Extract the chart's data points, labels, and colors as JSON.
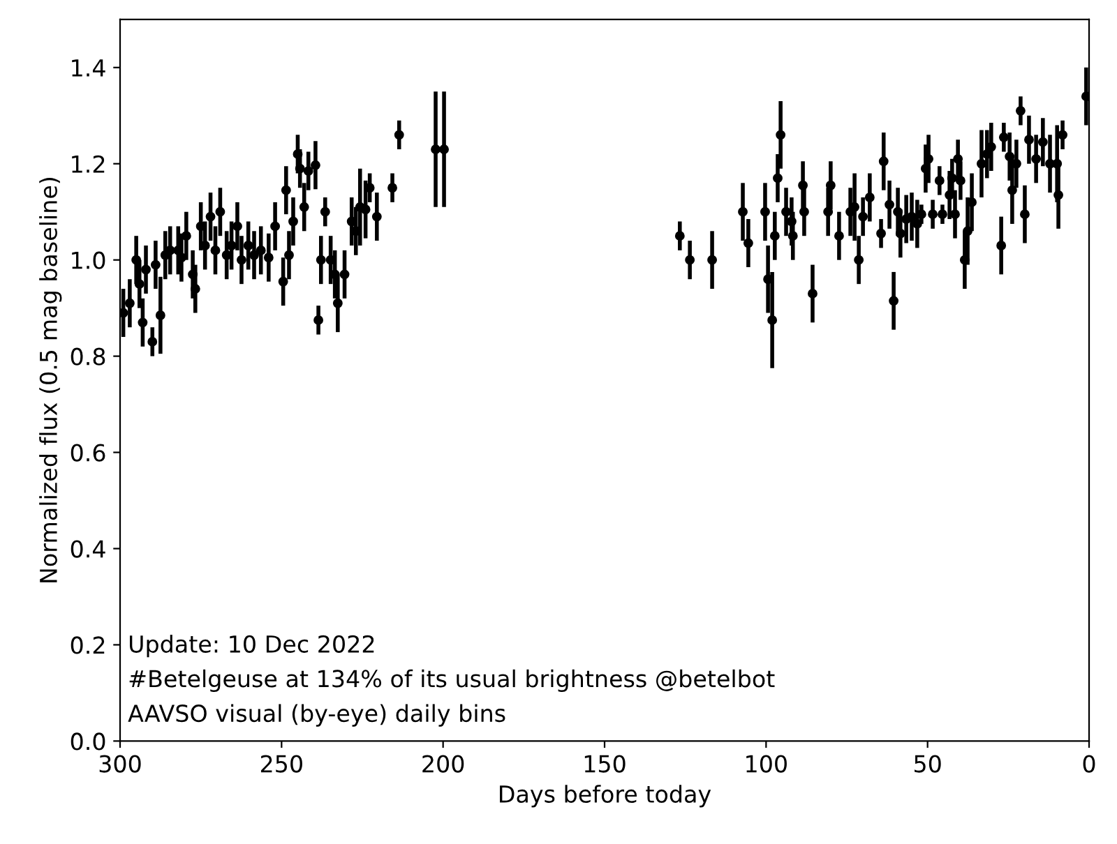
{
  "chart_data": {
    "type": "scatter",
    "xlabel": "Days before today",
    "ylabel": "Normalized flux (0.5 mag baseline)",
    "annotations": [
      "Update: 10 Dec 2022",
      "#Betelgeuse at 134% of its usual brightness @betelbot",
      "AAVSO visual (by-eye) daily bins"
    ],
    "xlim": [
      300,
      0
    ],
    "ylim": [
      0,
      1.5
    ],
    "xticks": [
      300,
      250,
      200,
      150,
      100,
      50,
      0
    ],
    "yticks": [
      {
        "value": 0,
        "label": "0.0"
      },
      {
        "value": 0.2,
        "label": "0.2"
      },
      {
        "value": 0.4,
        "label": "0.4"
      },
      {
        "value": 0.6,
        "label": "0.6"
      },
      {
        "value": 0.8,
        "label": "0.8"
      },
      {
        "value": 1.0,
        "label": "1.0"
      },
      {
        "value": 1.2,
        "label": "1.2"
      },
      {
        "value": 1.4,
        "label": "1.4"
      }
    ],
    "grid": false,
    "marker": "circle",
    "series": [
      {
        "color": "#000000",
        "x": [
          299,
          297,
          295,
          294,
          293,
          292,
          290,
          289,
          287.5,
          286,
          284.5,
          282,
          281,
          279.5,
          277.5,
          276.7,
          275,
          273.7,
          272,
          270.5,
          269,
          267,
          265.5,
          263.7,
          262.4,
          260.3,
          258.5,
          256.4,
          254,
          252,
          249.5,
          248.6,
          247.7,
          246.4,
          245,
          244.3,
          243,
          241.7,
          239.5,
          238.6,
          237.8,
          236.5,
          234.8,
          233.5,
          232.6,
          230.5,
          228.3,
          227,
          225.7,
          224,
          222.7,
          220.5,
          215.7,
          213.6,
          202.3,
          199.7,
          126.7,
          123.6,
          116.7,
          107.2,
          105.5,
          100.3,
          99.4,
          98.1,
          97.3,
          96.4,
          95.5,
          93.8,
          92.1,
          91.7,
          88.6,
          88.2,
          85.6,
          80.8,
          80,
          77.4,
          73.9,
          72.6,
          71.3,
          70,
          67.9,
          64.4,
          63.6,
          61.8,
          60.5,
          59.2,
          58.4,
          56.6,
          54.9,
          53.2,
          51.9,
          50.6,
          49.7,
          48.4,
          46.3,
          45.4,
          43.2,
          42.4,
          41.5,
          40.6,
          39.8,
          38.5,
          37.6,
          36.3,
          33.3,
          31.6,
          30.3,
          27.2,
          26.4,
          24.6,
          23.8,
          22.5,
          21.2,
          19.9,
          18.6,
          16.4,
          14.3,
          12.1,
          9.9,
          9.5,
          8.2,
          0.9
        ],
        "values": [
          0.89,
          0.91,
          1.0,
          0.95,
          0.87,
          0.98,
          0.83,
          0.99,
          0.885,
          1.01,
          1.02,
          1.02,
          1.005,
          1.05,
          0.97,
          0.94,
          1.07,
          1.03,
          1.09,
          1.02,
          1.1,
          1.01,
          1.03,
          1.07,
          1.0,
          1.03,
          1.01,
          1.02,
          1.005,
          1.07,
          0.955,
          1.145,
          1.01,
          1.08,
          1.22,
          1.19,
          1.11,
          1.185,
          1.197,
          0.875,
          1.0,
          1.1,
          1.0,
          0.97,
          0.91,
          0.97,
          1.08,
          1.06,
          1.11,
          1.105,
          1.15,
          1.09,
          1.15,
          1.26,
          1.23,
          1.23,
          1.05,
          1.0,
          1.0,
          1.1,
          1.035,
          1.1,
          0.96,
          0.875,
          1.05,
          1.17,
          1.26,
          1.1,
          1.08,
          1.05,
          1.155,
          1.1,
          0.93,
          1.1,
          1.155,
          1.05,
          1.1,
          1.11,
          1.0,
          1.09,
          1.13,
          1.055,
          1.205,
          1.115,
          0.915,
          1.1,
          1.055,
          1.085,
          1.09,
          1.075,
          1.095,
          1.19,
          1.21,
          1.095,
          1.165,
          1.095,
          1.135,
          1.17,
          1.095,
          1.21,
          1.165,
          1.0,
          1.06,
          1.12,
          1.2,
          1.22,
          1.235,
          1.03,
          1.255,
          1.215,
          1.145,
          1.2,
          1.31,
          1.095,
          1.25,
          1.21,
          1.245,
          1.2,
          1.2,
          1.135,
          1.26,
          1.34
        ],
        "errors": [
          0.05,
          0.05,
          0.05,
          0.05,
          0.05,
          0.05,
          0.03,
          0.05,
          0.08,
          0.05,
          0.05,
          0.05,
          0.05,
          0.05,
          0.05,
          0.05,
          0.05,
          0.05,
          0.05,
          0.05,
          0.05,
          0.05,
          0.05,
          0.05,
          0.05,
          0.05,
          0.05,
          0.05,
          0.05,
          0.05,
          0.05,
          0.05,
          0.05,
          0.05,
          0.04,
          0.04,
          0.05,
          0.04,
          0.05,
          0.03,
          0.05,
          0.03,
          0.05,
          0.05,
          0.06,
          0.05,
          0.05,
          0.05,
          0.08,
          0.06,
          0.03,
          0.05,
          0.03,
          0.03,
          0.12,
          0.12,
          0.03,
          0.04,
          0.06,
          0.06,
          0.05,
          0.06,
          0.07,
          0.1,
          0.05,
          0.05,
          0.07,
          0.05,
          0.05,
          0.05,
          0.05,
          0.05,
          0.06,
          0.05,
          0.05,
          0.05,
          0.05,
          0.07,
          0.05,
          0.04,
          0.05,
          0.03,
          0.06,
          0.05,
          0.06,
          0.05,
          0.05,
          0.05,
          0.05,
          0.05,
          0.02,
          0.05,
          0.05,
          0.03,
          0.03,
          0.02,
          0.05,
          0.04,
          0.05,
          0.04,
          0.04,
          0.06,
          0.07,
          0.06,
          0.07,
          0.05,
          0.05,
          0.06,
          0.03,
          0.05,
          0.07,
          0.05,
          0.03,
          0.06,
          0.05,
          0.05,
          0.05,
          0.06,
          0.08,
          0.07,
          0.03,
          0.06
        ]
      }
    ]
  }
}
